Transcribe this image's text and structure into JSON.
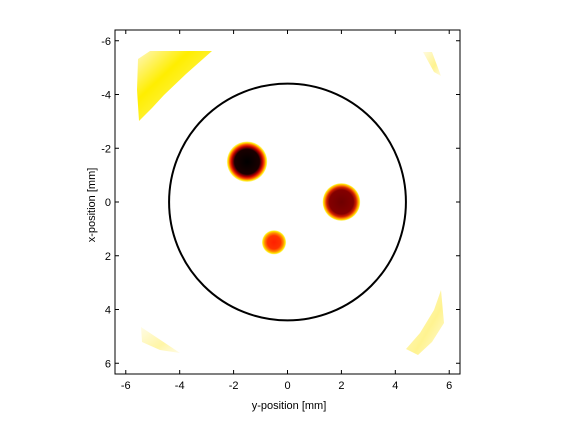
{
  "chart_data": {
    "type": "heatmap",
    "xlabel": "y-position [mm]",
    "ylabel": "x-position [mm]",
    "xlim": [
      -6.4,
      6.4
    ],
    "ylim": [
      -6.4,
      6.4
    ],
    "y_axis_reversed": true,
    "xticks": [
      -6,
      -4,
      -2,
      0,
      2,
      4,
      6
    ],
    "yticks": [
      -6,
      -4,
      -2,
      0,
      2,
      4,
      6
    ],
    "xtick_labels": [
      "-6",
      "-4",
      "-2",
      "0",
      "2",
      "4",
      "6"
    ],
    "ytick_labels": [
      "-6",
      "-4",
      "-2",
      "0",
      "2",
      "4",
      "6"
    ],
    "grid": false,
    "colormap": "hot (inverted: white = low, black = high)",
    "boundary_circle": {
      "center": [
        0,
        0
      ],
      "radius": 4.4,
      "color": "#000000"
    },
    "spots": [
      {
        "y": -1.5,
        "x": -1.5,
        "radius": 0.75,
        "level": "high",
        "core_color": "#050000",
        "edge_color": "#ffe400"
      },
      {
        "y": 2.0,
        "x": 0.0,
        "radius": 0.7,
        "level": "medium-high",
        "core_color": "#7a0000",
        "edge_color": "#ffe400"
      },
      {
        "y": -0.5,
        "x": 1.5,
        "radius": 0.45,
        "level": "medium",
        "core_color": "#ff2a00",
        "edge_color": "#ffea00"
      }
    ],
    "corner_artifacts": [
      {
        "corner": "top-left",
        "color": "#ffee00",
        "level": "low"
      },
      {
        "corner": "top-right",
        "color": "#fff7b0",
        "level": "very low"
      },
      {
        "corner": "bottom-left",
        "color": "#fff7b8",
        "level": "very low"
      },
      {
        "corner": "bottom-right",
        "color": "#fff080",
        "level": "low"
      }
    ]
  }
}
